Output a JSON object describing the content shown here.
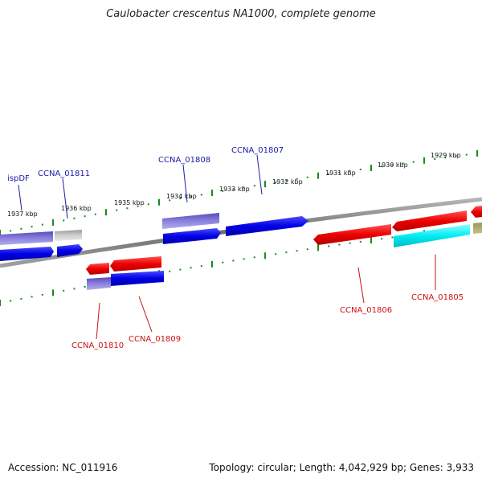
{
  "title": "Caulobacter crescentus NA1000, complete genome",
  "footer": {
    "accession": "Accession: NC_011916",
    "topology": "Topology: circular; Length: 4,042,929 bp; Genes: 3,933"
  },
  "scale_labels": [
    "1937 kbp",
    "1936 kbp",
    "1935 kbp",
    "1934 kbp",
    "1933 kbp",
    "1932 kbp",
    "1931 kbp",
    "1930 kbp",
    "1929 kbp"
  ],
  "gene_labels": {
    "top": [
      "ispDF",
      "CCNA_01811",
      "CCNA_01808",
      "CCNA_01807"
    ],
    "bottom": [
      "CCNA_01810",
      "CCNA_01809",
      "CCNA_01806",
      "CCNA_01805"
    ]
  },
  "colors": {
    "backbone": "#8a8a8a",
    "ticks": "#1a8a1a",
    "forward_gene": "#0000ee",
    "forward_gene_light": "#7a6fd6",
    "reverse_gene": "#ee0000",
    "cyan_gene": "#00e8f0",
    "gray_gene": "#c8c8c8",
    "olive_gene": "#b8b07a",
    "top_label": "#1a1aa8",
    "bottom_label": "#cc1111"
  }
}
